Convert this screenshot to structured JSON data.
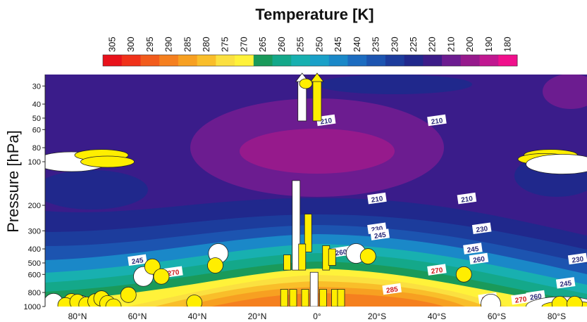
{
  "chart_data": {
    "type": "contour",
    "title": "Temperature [K]",
    "ylabel": "Pressure [hPa]",
    "xlabel": "",
    "colorbar": {
      "labels": [
        "305",
        "300",
        "295",
        "290",
        "285",
        "280",
        "275",
        "270",
        "265",
        "260",
        "255",
        "250",
        "245",
        "240",
        "235",
        "230",
        "225",
        "220",
        "210",
        "200",
        "190",
        "180"
      ],
      "colors": [
        "#e8121b",
        "#f0321a",
        "#f25c1c",
        "#f5801f",
        "#f7a021",
        "#f9be2a",
        "#fbe040",
        "#fff23a",
        "#1a9a5a",
        "#14a88a",
        "#18b0b0",
        "#1aa0c8",
        "#1a88c8",
        "#1c6cc0",
        "#1c54b0",
        "#1c3c9c",
        "#20288c",
        "#3c1c88",
        "#6c1c90",
        "#961a8c",
        "#c01890",
        "#f0108c"
      ]
    },
    "xaxis": {
      "ticks": [
        {
          "label": "80°N",
          "lat": 80
        },
        {
          "label": "60°N",
          "lat": 60
        },
        {
          "label": "40°N",
          "lat": 40
        },
        {
          "label": "20°N",
          "lat": 20
        },
        {
          "label": "0°",
          "lat": 0
        },
        {
          "label": "20°S",
          "lat": -20
        },
        {
          "label": "40°S",
          "lat": -40
        },
        {
          "label": "60°S",
          "lat": -60
        },
        {
          "label": "80°S",
          "lat": -80
        }
      ]
    },
    "yaxis": {
      "scale": "log",
      "ylim": [
        1000,
        25
      ],
      "ticks": [
        "30",
        "40",
        "50",
        "60",
        "80",
        "100",
        "200",
        "300",
        "400",
        "500",
        "600",
        "800",
        "1000"
      ],
      "values": [
        30,
        40,
        50,
        60,
        80,
        100,
        200,
        300,
        400,
        500,
        600,
        800,
        1000
      ]
    },
    "contour_labels": [
      {
        "text": "210",
        "lat": -3,
        "p": 52
      },
      {
        "text": "210",
        "lat": -40,
        "p": 52
      },
      {
        "text": "210",
        "lat": -20,
        "p": 180
      },
      {
        "text": "210",
        "lat": -50,
        "p": 180
      },
      {
        "text": "230",
        "lat": -55,
        "p": 290
      },
      {
        "text": "230",
        "lat": -20,
        "p": 290
      },
      {
        "text": "245",
        "lat": -21,
        "p": 320
      },
      {
        "text": "245",
        "lat": -52,
        "p": 400
      },
      {
        "text": "245",
        "lat": 60,
        "p": 480
      },
      {
        "text": "260",
        "lat": -8,
        "p": 420
      },
      {
        "text": "260",
        "lat": -54,
        "p": 470
      },
      {
        "text": "270",
        "lat": -40,
        "p": 560
      },
      {
        "text": "270",
        "lat": 48,
        "p": 580
      },
      {
        "text": "285",
        "lat": -25,
        "p": 760
      },
      {
        "text": "285",
        "lat": -57,
        "p": 880
      },
      {
        "text": "270",
        "lat": -68,
        "p": 890
      },
      {
        "text": "260",
        "lat": -73,
        "p": 850
      },
      {
        "text": "245",
        "lat": -83,
        "p": 690
      },
      {
        "text": "230",
        "lat": -87,
        "p": 470
      }
    ],
    "arrows": [
      {
        "color": "white",
        "lat": 5
      },
      {
        "color": "yellow",
        "lat": 0
      }
    ],
    "bars_note": "vertical bars near equator",
    "bars": [
      {
        "color": "white",
        "lat": 7,
        "p_top": 135,
        "p_bot": 560
      },
      {
        "color": "yellow",
        "lat": 3,
        "p_top": 230,
        "p_bot": 420
      },
      {
        "color": "yellow",
        "lat": 5,
        "p_top": 370,
        "p_bot": 560
      },
      {
        "color": "yellow",
        "lat": 10,
        "p_top": 440,
        "p_bot": 560
      },
      {
        "color": "yellow",
        "lat": -3,
        "p_top": 380,
        "p_bot": 560
      },
      {
        "color": "yellow",
        "lat": -5,
        "p_top": 400,
        "p_bot": 520
      },
      {
        "color": "white",
        "lat": 1,
        "p_top": 580,
        "p_bot": 1000
      },
      {
        "color": "yellow",
        "lat": 4,
        "p_top": 760,
        "p_bot": 1000
      },
      {
        "color": "yellow",
        "lat": 8,
        "p_top": 760,
        "p_bot": 1000
      },
      {
        "color": "yellow",
        "lat": -2,
        "p_top": 760,
        "p_bot": 1000
      },
      {
        "color": "yellow",
        "lat": -6,
        "p_top": 760,
        "p_bot": 1000
      },
      {
        "color": "yellow",
        "lat": -8,
        "p_top": 760,
        "p_bot": 1000
      },
      {
        "color": "yellow",
        "lat": 11,
        "p_top": 760,
        "p_bot": 1000
      }
    ],
    "circles": [
      {
        "c": "white",
        "lat": 88,
        "p": 950
      },
      {
        "c": "white",
        "lat": 79,
        "p": 980
      },
      {
        "c": "white",
        "lat": 73,
        "p": 950
      },
      {
        "c": "white",
        "lat": 58,
        "p": 620
      },
      {
        "c": "white",
        "lat": 33,
        "p": 430
      },
      {
        "c": "white",
        "lat": -13,
        "p": 430
      },
      {
        "c": "white",
        "lat": -58,
        "p": 960
      },
      {
        "c": "yellow",
        "lat": 82,
        "p": 920
      },
      {
        "c": "yellow",
        "lat": 84,
        "p": 980
      },
      {
        "c": "yellow",
        "lat": 80,
        "p": 930
      },
      {
        "c": "yellow",
        "lat": 77,
        "p": 970
      },
      {
        "c": "yellow",
        "lat": 74,
        "p": 920
      },
      {
        "c": "yellow",
        "lat": 72,
        "p": 880
      },
      {
        "c": "yellow",
        "lat": 70,
        "p": 950
      },
      {
        "c": "yellow",
        "lat": 68,
        "p": 1000
      },
      {
        "c": "yellow",
        "lat": 63,
        "p": 830
      },
      {
        "c": "yellow",
        "lat": 55,
        "p": 530
      },
      {
        "c": "yellow",
        "lat": 52,
        "p": 620
      },
      {
        "c": "yellow",
        "lat": 41,
        "p": 940
      },
      {
        "c": "yellow",
        "lat": 34,
        "p": 520
      },
      {
        "c": "yellow",
        "lat": -17,
        "p": 450
      },
      {
        "c": "yellow",
        "lat": -49,
        "p": 600
      },
      {
        "c": "yellow",
        "lat": -81,
        "p": 960
      },
      {
        "c": "yellow",
        "lat": -86,
        "p": 960
      }
    ],
    "ellipses": [
      {
        "c": "white",
        "lat": 82,
        "p": 100
      },
      {
        "c": "yellow",
        "lat": 72,
        "p": 90
      },
      {
        "c": "yellow",
        "lat": 70,
        "p": 100
      },
      {
        "c": "yellow",
        "lat": -78,
        "p": 90
      },
      {
        "c": "yellow",
        "lat": -80,
        "p": 100
      },
      {
        "c": "yellow",
        "lat": -76,
        "p": 96
      },
      {
        "c": "white",
        "lat": -82,
        "p": 104
      },
      {
        "c": "white",
        "lat": -82,
        "p": 1000
      },
      {
        "c": "yellow",
        "lat": -84,
        "p": 1000
      }
    ]
  }
}
